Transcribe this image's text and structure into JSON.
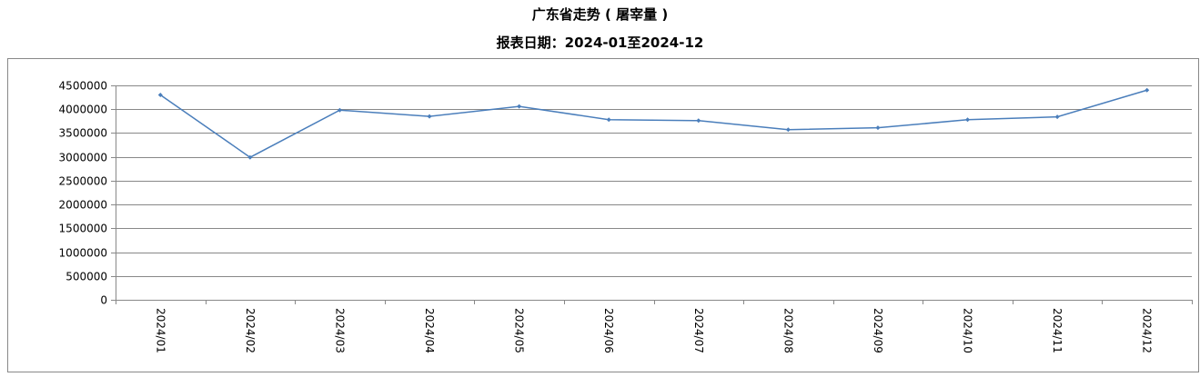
{
  "chart_data": {
    "type": "line",
    "title": "广东省走势 ( 屠宰量 )",
    "subtitle": "报表日期：2024-01至2024-12",
    "xlabel": "",
    "ylabel": "",
    "categories": [
      "2024/01",
      "2024/02",
      "2024/03",
      "2024/04",
      "2024/05",
      "2024/06",
      "2024/07",
      "2024/08",
      "2024/09",
      "2024/10",
      "2024/11",
      "2024/12"
    ],
    "series": [
      {
        "values": [
          4300000,
          2990000,
          3980000,
          3850000,
          4060000,
          3780000,
          3760000,
          3570000,
          3610000,
          3780000,
          3840000,
          4400000
        ],
        "color": "#4a7ebb"
      }
    ],
    "ylim": [
      0,
      4500000
    ],
    "yticks": [
      0,
      500000,
      1000000,
      1500000,
      2000000,
      2500000,
      3000000,
      3500000,
      4000000,
      4500000
    ],
    "grid": true,
    "legend": "none"
  }
}
